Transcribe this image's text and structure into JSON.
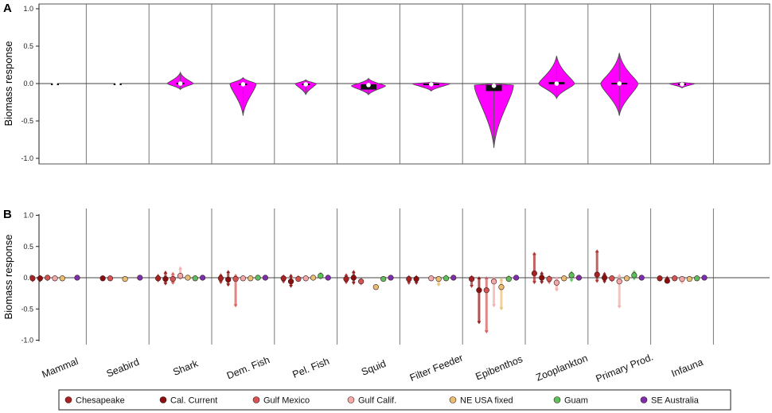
{
  "chart_data": [
    {
      "panel_label": "A",
      "type": "violin",
      "ylabel": "Biomass response",
      "ylim": [
        -1.0,
        1.0
      ],
      "yticks": [
        "-1.0",
        "-0.5",
        "0.0",
        "0.5",
        "1.0"
      ],
      "categories": [
        "Mammal",
        "Seabird",
        "Shark",
        "Dem. Fish",
        "Pel. Fish",
        "Squid",
        "Filter Feeder",
        "Epibenthos",
        "Zooplankton",
        "Primary Prod.",
        "Infauna"
      ],
      "violins": [
        {
          "category": "Mammal",
          "min": -0.03,
          "max": 0.0,
          "q1": -0.01,
          "q3": 0.0,
          "median": -0.005,
          "widest": 0.0,
          "width": 0.03
        },
        {
          "category": "Seabird",
          "min": -0.02,
          "max": 0.0,
          "q1": -0.01,
          "q3": 0.0,
          "median": -0.005,
          "widest": 0.0,
          "width": 0.05
        },
        {
          "category": "Shark",
          "min": -0.08,
          "max": 0.15,
          "q1": -0.01,
          "q3": 0.01,
          "median": 0.0,
          "widest": 0.0,
          "width": 0.55
        },
        {
          "category": "Dem. Fish",
          "min": -0.43,
          "max": 0.08,
          "q1": -0.02,
          "q3": 0.0,
          "median": -0.01,
          "widest": 0.0,
          "width": 0.55
        },
        {
          "category": "Pel. Fish",
          "min": -0.15,
          "max": 0.05,
          "q1": -0.01,
          "q3": 0.0,
          "median": -0.01,
          "widest": 0.0,
          "width": 0.45
        },
        {
          "category": "Squid",
          "min": -0.15,
          "max": 0.07,
          "q1": -0.08,
          "q3": -0.01,
          "median": -0.02,
          "widest": -0.03,
          "width": 0.72
        },
        {
          "category": "Filter Feeder",
          "min": -0.1,
          "max": 0.02,
          "q1": -0.02,
          "q3": 0.0,
          "median": -0.01,
          "widest": 0.0,
          "width": 0.8
        },
        {
          "category": "Epibenthos",
          "min": -0.86,
          "max": 0.0,
          "q1": -0.1,
          "q3": -0.02,
          "median": -0.03,
          "widest": -0.02,
          "width": 0.82
        },
        {
          "category": "Zooplankton",
          "min": -0.2,
          "max": 0.37,
          "q1": -0.01,
          "q3": 0.02,
          "median": 0.0,
          "widest": 0.0,
          "width": 0.75
        },
        {
          "category": "Primary Prod.",
          "min": -0.43,
          "max": 0.41,
          "q1": -0.01,
          "q3": 0.01,
          "median": 0.0,
          "widest": 0.0,
          "width": 0.78
        },
        {
          "category": "Infauna",
          "min": -0.06,
          "max": 0.02,
          "q1": -0.02,
          "q3": 0.0,
          "median": -0.01,
          "widest": 0.0,
          "width": 0.55
        }
      ],
      "colors": {
        "fill": "#ff00ff",
        "outline": "#444444",
        "box": "#111111",
        "median_dot": "#ffffff"
      }
    },
    {
      "panel_label": "B",
      "type": "scatter",
      "ylabel": "Biomass response",
      "ylim": [
        -1.0,
        1.0
      ],
      "yticks": [
        "-1.0",
        "-0.5",
        "0.0",
        "0.5",
        "1.0"
      ],
      "categories": [
        "Mammal",
        "Seabird",
        "Shark",
        "Dem. Fish",
        "Pel. Fish",
        "Squid",
        "Filter Feeder",
        "Epibenthos",
        "Zooplankton",
        "Primary Prod.",
        "Infauna"
      ],
      "legend": {
        "placement": "bottom",
        "items": [
          {
            "label": "Chesapeake",
            "color": "#a82222"
          },
          {
            "label": "Cal. Current",
            "color": "#8b0e0e"
          },
          {
            "label": "Gulf Mexico",
            "color": "#d45454"
          },
          {
            "label": "Gulf Calif.",
            "color": "#f4a9a9"
          },
          {
            "label": "NE USA fixed",
            "color": "#e8be72"
          },
          {
            "label": "Guam",
            "color": "#5cc05c"
          },
          {
            "label": "SE Australia",
            "color": "#7b2fae"
          }
        ]
      },
      "series": [
        {
          "name": "Chesapeake",
          "values": [
            -0.01,
            null,
            -0.01,
            -0.01,
            -0.01,
            -0.02,
            -0.02,
            -0.02,
            0.07,
            0.05,
            -0.01
          ],
          "low": [
            -0.05,
            null,
            -0.05,
            -0.08,
            -0.07,
            -0.08,
            -0.09,
            -0.14,
            -0.08,
            -0.06,
            -0.04
          ],
          "high": [
            0.02,
            null,
            0.04,
            0.05,
            0.03,
            0.05,
            0.02,
            0.02,
            0.39,
            0.43,
            0.02
          ]
        },
        {
          "name": "Cal. Current",
          "values": [
            -0.01,
            -0.01,
            -0.02,
            -0.03,
            -0.06,
            0.0,
            -0.02,
            -0.2,
            0.0,
            0.0,
            -0.05
          ],
          "low": [
            -0.05,
            -0.03,
            -0.1,
            -0.12,
            -0.14,
            -0.09,
            -0.09,
            -0.72,
            -0.08,
            -0.07,
            -0.07
          ],
          "high": [
            0.02,
            0.01,
            0.09,
            0.1,
            0.04,
            0.1,
            0.02,
            0.0,
            0.08,
            0.07,
            0.01
          ]
        },
        {
          "name": "Gulf Mexico",
          "values": [
            0.0,
            -0.01,
            -0.02,
            -0.02,
            -0.02,
            -0.06,
            null,
            -0.2,
            -0.02,
            -0.01,
            -0.01
          ],
          "low": [
            -0.03,
            -0.02,
            -0.09,
            -0.45,
            -0.05,
            -0.1,
            null,
            -0.87,
            -0.08,
            -0.05,
            -0.03
          ],
          "high": [
            0.02,
            0.01,
            0.07,
            0.04,
            0.02,
            -0.02,
            null,
            0.0,
            0.02,
            0.02,
            0.02
          ]
        },
        {
          "name": "Gulf Calif.",
          "values": [
            -0.01,
            null,
            0.03,
            -0.01,
            -0.01,
            null,
            -0.01,
            -0.06,
            -0.08,
            -0.06,
            -0.02
          ],
          "low": [
            -0.03,
            null,
            -0.02,
            -0.03,
            -0.04,
            null,
            -0.03,
            -0.45,
            -0.2,
            -0.47,
            -0.08
          ],
          "high": [
            0.01,
            null,
            0.16,
            0.01,
            0.02,
            null,
            0.01,
            0.0,
            0.0,
            0.04,
            0.01
          ]
        },
        {
          "name": "NE USA fixed",
          "values": [
            -0.01,
            -0.02,
            0.0,
            -0.01,
            0.0,
            -0.15,
            -0.02,
            -0.15,
            -0.01,
            -0.01,
            -0.02
          ],
          "low": [
            -0.03,
            -0.05,
            -0.01,
            -0.02,
            -0.02,
            -0.17,
            -0.12,
            -0.5,
            -0.03,
            -0.03,
            -0.04
          ],
          "high": [
            0.01,
            0.01,
            0.01,
            0.01,
            0.02,
            -0.13,
            0.01,
            -0.02,
            0.01,
            0.01,
            0.01
          ]
        },
        {
          "name": "Guam",
          "values": [
            null,
            null,
            -0.01,
            0.0,
            0.03,
            -0.02,
            -0.01,
            -0.02,
            0.04,
            0.04,
            -0.01
          ],
          "low": [
            null,
            null,
            -0.03,
            -0.02,
            -0.01,
            -0.04,
            -0.03,
            -0.05,
            -0.05,
            -0.02,
            -0.03
          ],
          "high": [
            null,
            null,
            0.02,
            0.02,
            0.07,
            0.0,
            0.03,
            0.02,
            0.09,
            0.1,
            0.01
          ]
        },
        {
          "name": "SE Australia",
          "values": [
            0.0,
            0.0,
            0.0,
            0.0,
            0.0,
            0.0,
            0.0,
            0.0,
            0.0,
            0.0,
            0.0
          ],
          "low": [
            null,
            null,
            null,
            null,
            null,
            null,
            null,
            null,
            null,
            null,
            null
          ],
          "high": [
            null,
            null,
            null,
            null,
            null,
            null,
            null,
            null,
            null,
            null,
            null
          ]
        }
      ]
    }
  ]
}
